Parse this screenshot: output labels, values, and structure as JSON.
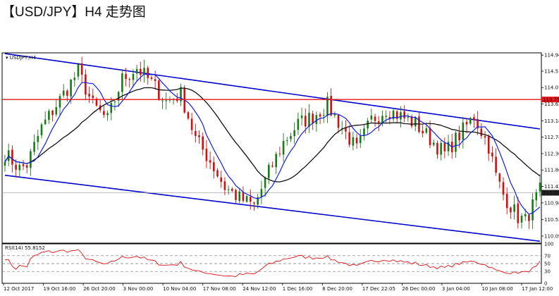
{
  "headline": "【USD/JPY】H4 走势图",
  "chart_data": {
    "type": "candlestick",
    "symbol_label": "USDJPY,H4",
    "timeframe": "H4",
    "ylim": [
      109.9,
      115.0
    ],
    "y_ticks": [
      114.94,
      114.51,
      114.07,
      113.63,
      113.18,
      112.74,
      112.3,
      111.86,
      111.42,
      110.98,
      110.53,
      110.09
    ],
    "y_tick_labels": [
      "114.94",
      "114.51",
      "114.07",
      "113.63",
      "113.18",
      "112.74",
      "112.30",
      "111.86",
      "111.42",
      "110.98",
      "110.53",
      "110.09"
    ],
    "x_tick_labels": [
      "12 Oct 2017",
      "19 Oct 16:00",
      "26 Oct 20:00",
      "3 Nov 00:00",
      "10 Nov 04:00",
      "17 Nov 08:00",
      "24 Nov 12:00",
      "1 Dec 16:00",
      "8 Dec 20:00",
      "17 Dec 22:05",
      "26 Dec 00:00",
      "3 Jan 04:00",
      "10 Jan 08:00",
      "17 Jan 12:00"
    ],
    "horizontal_line": {
      "value": 113.75,
      "label": "113.75",
      "color": "#e8151b"
    },
    "current_price": {
      "value": 111.25,
      "label": "111.25"
    },
    "channel": {
      "color": "#0000cc",
      "upper": [
        [
          0,
          114.98
        ],
        [
          146,
          112.96
        ]
      ],
      "lower": [
        [
          0,
          111.72
        ],
        [
          146,
          109.95
        ]
      ]
    },
    "ma_fast": {
      "color": "#1020e0"
    },
    "ma_slow": {
      "color": "#111111"
    },
    "anchors": [
      [
        0,
        112.3
      ],
      [
        4,
        111.9
      ],
      [
        6,
        112.0
      ],
      [
        10,
        113.0
      ],
      [
        16,
        113.9
      ],
      [
        20,
        114.5
      ],
      [
        24,
        113.6
      ],
      [
        28,
        113.2
      ],
      [
        32,
        114.3
      ],
      [
        36,
        114.6
      ],
      [
        40,
        114.2
      ],
      [
        44,
        113.7
      ],
      [
        48,
        113.9
      ],
      [
        52,
        112.7
      ],
      [
        56,
        112.1
      ],
      [
        60,
        111.4
      ],
      [
        64,
        111.1
      ],
      [
        68,
        110.9
      ],
      [
        72,
        111.8
      ],
      [
        76,
        112.6
      ],
      [
        80,
        113.1
      ],
      [
        84,
        113.3
      ],
      [
        88,
        113.6
      ],
      [
        92,
        113.0
      ],
      [
        96,
        112.4
      ],
      [
        100,
        113.2
      ],
      [
        104,
        113.5
      ],
      [
        108,
        113.3
      ],
      [
        112,
        113.1
      ],
      [
        116,
        112.7
      ],
      [
        120,
        112.3
      ],
      [
        124,
        112.8
      ],
      [
        128,
        113.3
      ],
      [
        132,
        112.5
      ],
      [
        134,
        111.7
      ],
      [
        136,
        111.2
      ],
      [
        138,
        110.9
      ],
      [
        140,
        110.6
      ],
      [
        142,
        110.5
      ],
      [
        144,
        110.9
      ],
      [
        146,
        111.3
      ]
    ],
    "candles": 147,
    "rsi": {
      "label": "RSI(14) 55.8152",
      "period": 14,
      "value": 55.8152,
      "ylim": [
        0,
        100
      ],
      "levels": [
        70,
        50,
        30
      ],
      "tick_labels": [
        "100",
        "70",
        "50",
        "30",
        "0"
      ],
      "color": "#e01010"
    },
    "colors": {
      "bull": "#1a7a1a",
      "bear": "#d01010",
      "grid": "#bbbbbb"
    }
  }
}
